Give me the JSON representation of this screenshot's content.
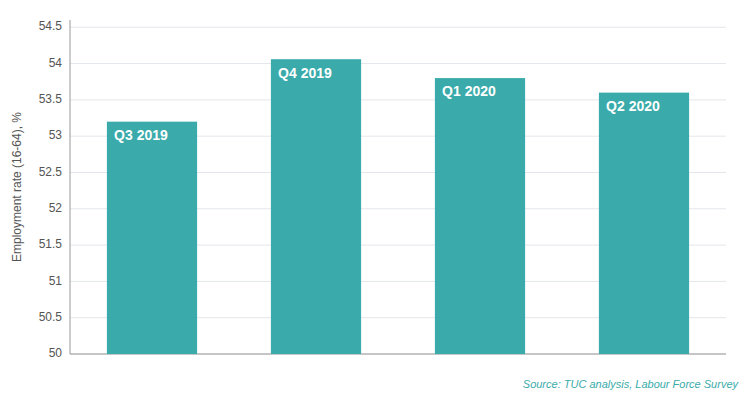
{
  "chart_data": {
    "type": "bar",
    "categories": [
      "Q3 2019",
      "Q4 2019",
      "Q1 2020",
      "Q2 2020"
    ],
    "values": [
      53.2,
      54.06,
      53.8,
      53.6
    ],
    "color": "#3aabaa",
    "ylabel": "Employment rate (16-64), %",
    "ylim": [
      50,
      54.6
    ],
    "yticks": [
      50,
      50.5,
      51,
      51.5,
      52,
      52.5,
      53,
      53.5,
      54,
      54.5
    ],
    "grid": true,
    "tick_labels": "y",
    "annotations": [
      "Source: TUC analysis, Labour Force Survey"
    ]
  }
}
